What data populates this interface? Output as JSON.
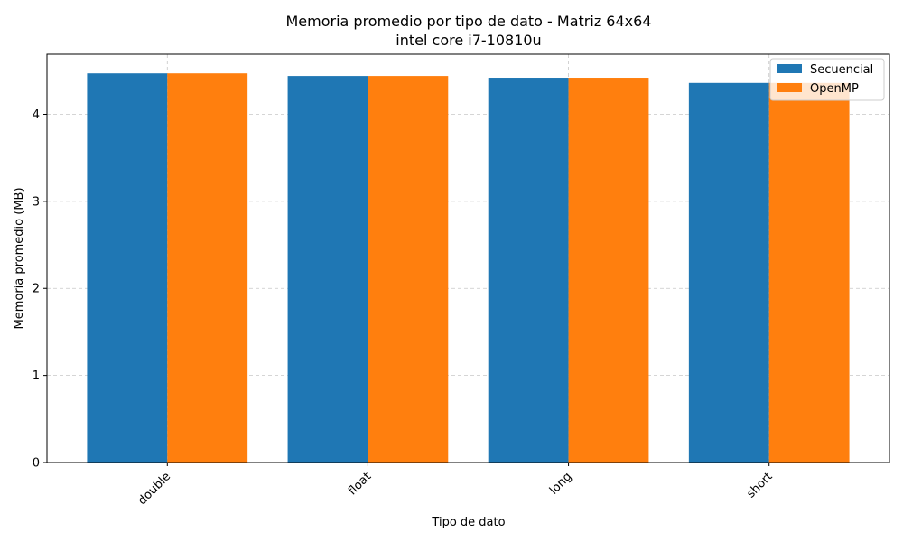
{
  "chart_data": {
    "type": "bar",
    "title": "Memoria promedio por tipo de dato - Matriz 64x64",
    "subtitle": "intel core i7-10810u",
    "xlabel": "Tipo de dato",
    "ylabel": "Memoria promedio (MB)",
    "categories": [
      "double",
      "float",
      "long",
      "short"
    ],
    "series": [
      {
        "name": "Secuencial",
        "color": "#1f77b4",
        "values": [
          4.47,
          4.44,
          4.42,
          4.36
        ]
      },
      {
        "name": "OpenMP",
        "color": "#ff7f0e",
        "values": [
          4.47,
          4.44,
          4.42,
          4.36
        ]
      }
    ],
    "ylim": [
      0,
      4.69
    ],
    "yticks": [
      0,
      1,
      2,
      3,
      4
    ],
    "grid": true,
    "legend_position": "top-right",
    "xtick_rotation": "45 degrees"
  }
}
